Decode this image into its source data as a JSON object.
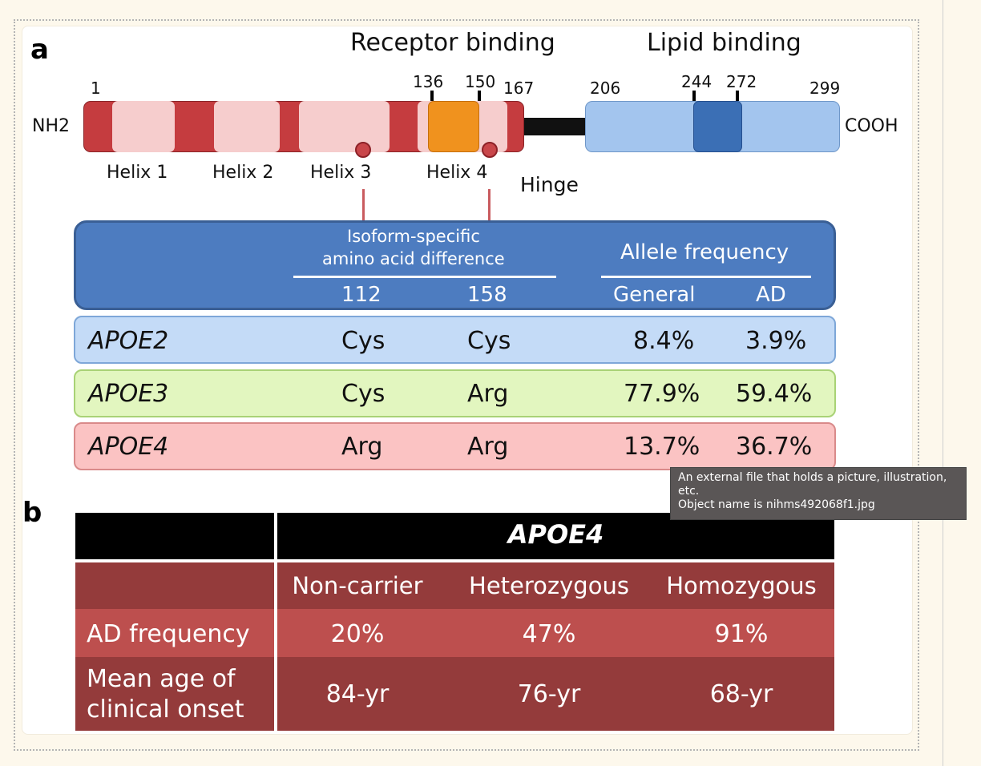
{
  "panel_a": {
    "letter": "a",
    "region_receptor": "Receptor binding",
    "region_lipid": "Lipid binding",
    "n_term": "NH2",
    "c_term": "COOH",
    "positions": [
      "1",
      "136",
      "150",
      "167",
      "206",
      "244",
      "272",
      "299"
    ],
    "helices": [
      "Helix 1",
      "Helix 2",
      "Helix 3",
      "Helix 4"
    ],
    "hinge": "Hinge",
    "table_header": {
      "isoform_line1": "Isoform-specific",
      "isoform_line2": "amino acid difference",
      "col_112": "112",
      "col_158": "158",
      "allele_freq": "Allele frequency",
      "col_general": "General",
      "col_ad": "AD"
    },
    "rows": [
      {
        "gene": "APOE2",
        "aa112": "Cys",
        "aa158": "Cys",
        "general": "8.4%",
        "ad": "3.9%",
        "color": "#c4dbf7"
      },
      {
        "gene": "APOE3",
        "aa112": "Cys",
        "aa158": "Arg",
        "general": "77.9%",
        "ad": "59.4%",
        "color": "#e2f6bf"
      },
      {
        "gene": "APOE4",
        "aa112": "Arg",
        "aa158": "Arg",
        "general": "13.7%",
        "ad": "36.7%",
        "color": "#fbc3c3"
      }
    ]
  },
  "panel_b": {
    "letter": "b",
    "title": "APOE4",
    "columns": [
      "Non-carrier",
      "Heterozygous",
      "Homozygous"
    ],
    "rows": [
      {
        "label_line1": "AD frequency",
        "label_line2": "",
        "values": [
          "20%",
          "47%",
          "91%"
        ]
      },
      {
        "label_line1": "Mean age of",
        "label_line2": "clinical onset",
        "values": [
          "84-yr",
          "76-yr",
          "68-yr"
        ]
      }
    ]
  },
  "tooltip": {
    "line1": "An external file that holds a picture, illustration,",
    "line2": "etc.",
    "line3": "Object name is nihms492068f1.jpg"
  },
  "colors": {
    "helix_dark_red": "#c53c3f",
    "helix_light": "#f6cdcd",
    "receptor_orange": "#f0921e",
    "lipid_blue": "#a3c5ee",
    "lipid_dark_blue": "#3b6fb5",
    "header_blue": "#4d7cc0",
    "table_b_dark": "#943b3b",
    "table_b_mid": "#bd4f4e"
  }
}
